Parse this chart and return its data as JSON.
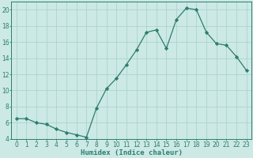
{
  "x": [
    0,
    1,
    2,
    3,
    4,
    5,
    6,
    7,
    8,
    9,
    10,
    11,
    12,
    13,
    14,
    15,
    16,
    17,
    18,
    19,
    20,
    21,
    22,
    23
  ],
  "y": [
    6.5,
    6.5,
    6.0,
    5.8,
    5.2,
    4.8,
    4.5,
    4.2,
    7.8,
    10.2,
    11.5,
    13.2,
    15.0,
    17.2,
    17.5,
    15.2,
    18.8,
    20.2,
    20.0,
    17.2,
    15.8,
    15.6,
    14.2,
    12.5
  ],
  "line_color": "#2e7d6e",
  "marker": "D",
  "marker_size": 2.2,
  "bg_color": "#cce9e5",
  "grid_color": "#aad4cf",
  "xlabel": "Humidex (Indice chaleur)",
  "ylim": [
    4,
    21
  ],
  "xlim": [
    -0.5,
    23.5
  ],
  "yticks": [
    4,
    6,
    8,
    10,
    12,
    14,
    16,
    18,
    20
  ],
  "xticks": [
    0,
    1,
    2,
    3,
    4,
    5,
    6,
    7,
    8,
    9,
    10,
    11,
    12,
    13,
    14,
    15,
    16,
    17,
    18,
    19,
    20,
    21,
    22,
    23
  ],
  "tick_color": "#2e7d6e",
  "label_fontsize": 6.5,
  "tick_fontsize": 5.5,
  "linewidth": 0.9
}
